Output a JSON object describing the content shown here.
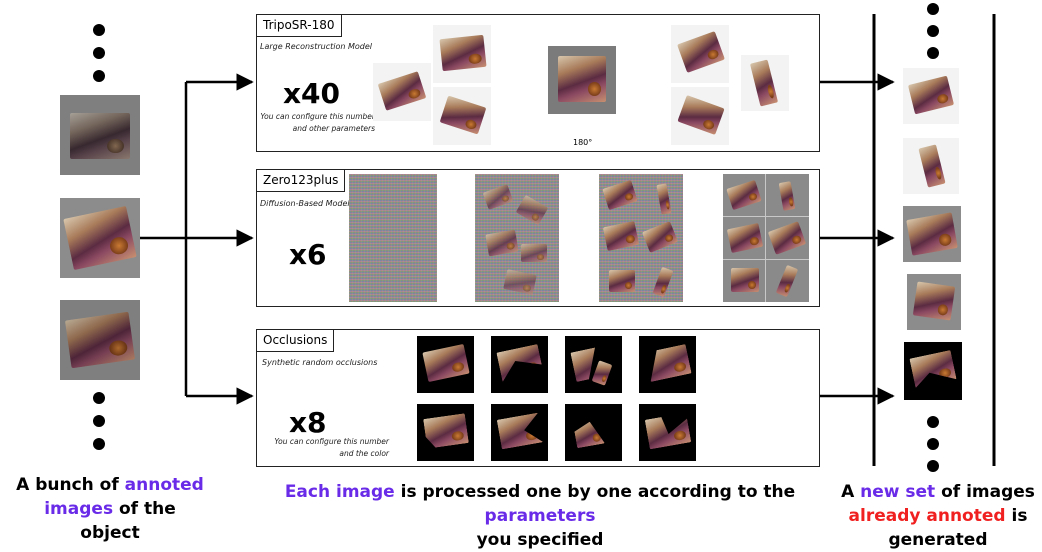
{
  "left_caption": {
    "part1": "A bunch of ",
    "part2": "annoted",
    "part3": "images",
    "part4": " of the",
    "part5": "object"
  },
  "center_caption": {
    "part1": "Each image",
    "part2": " is processed one by one according to the ",
    "part3": "parameters",
    "part4": "you specified"
  },
  "right_caption": {
    "part1": "A ",
    "part2": "new set",
    "part3": " of images",
    "part4": "already annoted",
    "part5": " is",
    "part6": "generated"
  },
  "panels": {
    "triposr": {
      "title": "TripoSR-180",
      "subtitle": "Large Reconstruction Model",
      "multiplier": "x40",
      "note_line1": "You can configure this number",
      "note_line2": "and other parameters",
      "angle": "180°"
    },
    "zero123": {
      "title": "Zero123plus",
      "subtitle": "Diffusion-Based Model",
      "multiplier": "x6"
    },
    "occlusions": {
      "title": "Occlusions",
      "subtitle": "Synthetic random occlusions",
      "multiplier": "x8",
      "note_line1": "You can configure this number",
      "note_line2": "and the color"
    }
  },
  "colors": {
    "highlight": "#6a2be8",
    "accent_red": "#f02020"
  }
}
